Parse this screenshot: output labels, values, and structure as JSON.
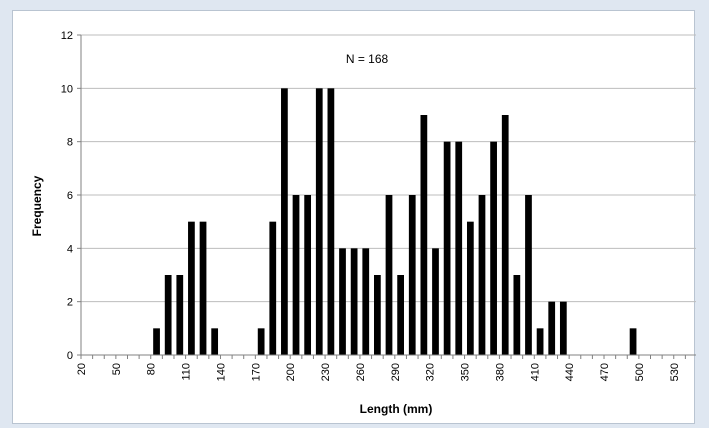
{
  "chart_data": {
    "type": "bar",
    "annotation": "N = 168",
    "xlabel": "Length (mm)",
    "ylabel": "Frequency",
    "ylim": [
      0,
      12
    ],
    "yticks": [
      0,
      2,
      4,
      6,
      8,
      10,
      12
    ],
    "xlim": [
      20,
      550
    ],
    "xticks": [
      20,
      50,
      80,
      110,
      140,
      170,
      200,
      230,
      260,
      290,
      320,
      350,
      380,
      410,
      440,
      470,
      500,
      530
    ],
    "bin_width": 10,
    "grid": "horizontal",
    "legend": "none",
    "bar_color": "#000000",
    "bins": [
      20,
      30,
      40,
      50,
      60,
      70,
      80,
      90,
      100,
      110,
      120,
      130,
      140,
      150,
      160,
      170,
      180,
      190,
      200,
      210,
      220,
      230,
      240,
      250,
      260,
      270,
      280,
      290,
      300,
      310,
      320,
      330,
      340,
      350,
      360,
      370,
      380,
      390,
      400,
      410,
      420,
      430,
      440,
      450,
      460,
      470,
      480,
      490,
      500,
      510,
      520,
      530,
      540
    ],
    "values": [
      0,
      0,
      0,
      0,
      0,
      0,
      1,
      3,
      3,
      5,
      5,
      1,
      0,
      0,
      0,
      1,
      5,
      10,
      6,
      6,
      10,
      10,
      4,
      4,
      4,
      3,
      6,
      3,
      6,
      9,
      4,
      8,
      8,
      5,
      6,
      8,
      9,
      3,
      6,
      1,
      2,
      2,
      0,
      0,
      0,
      0,
      0,
      1,
      0,
      0,
      0,
      0,
      0
    ]
  }
}
